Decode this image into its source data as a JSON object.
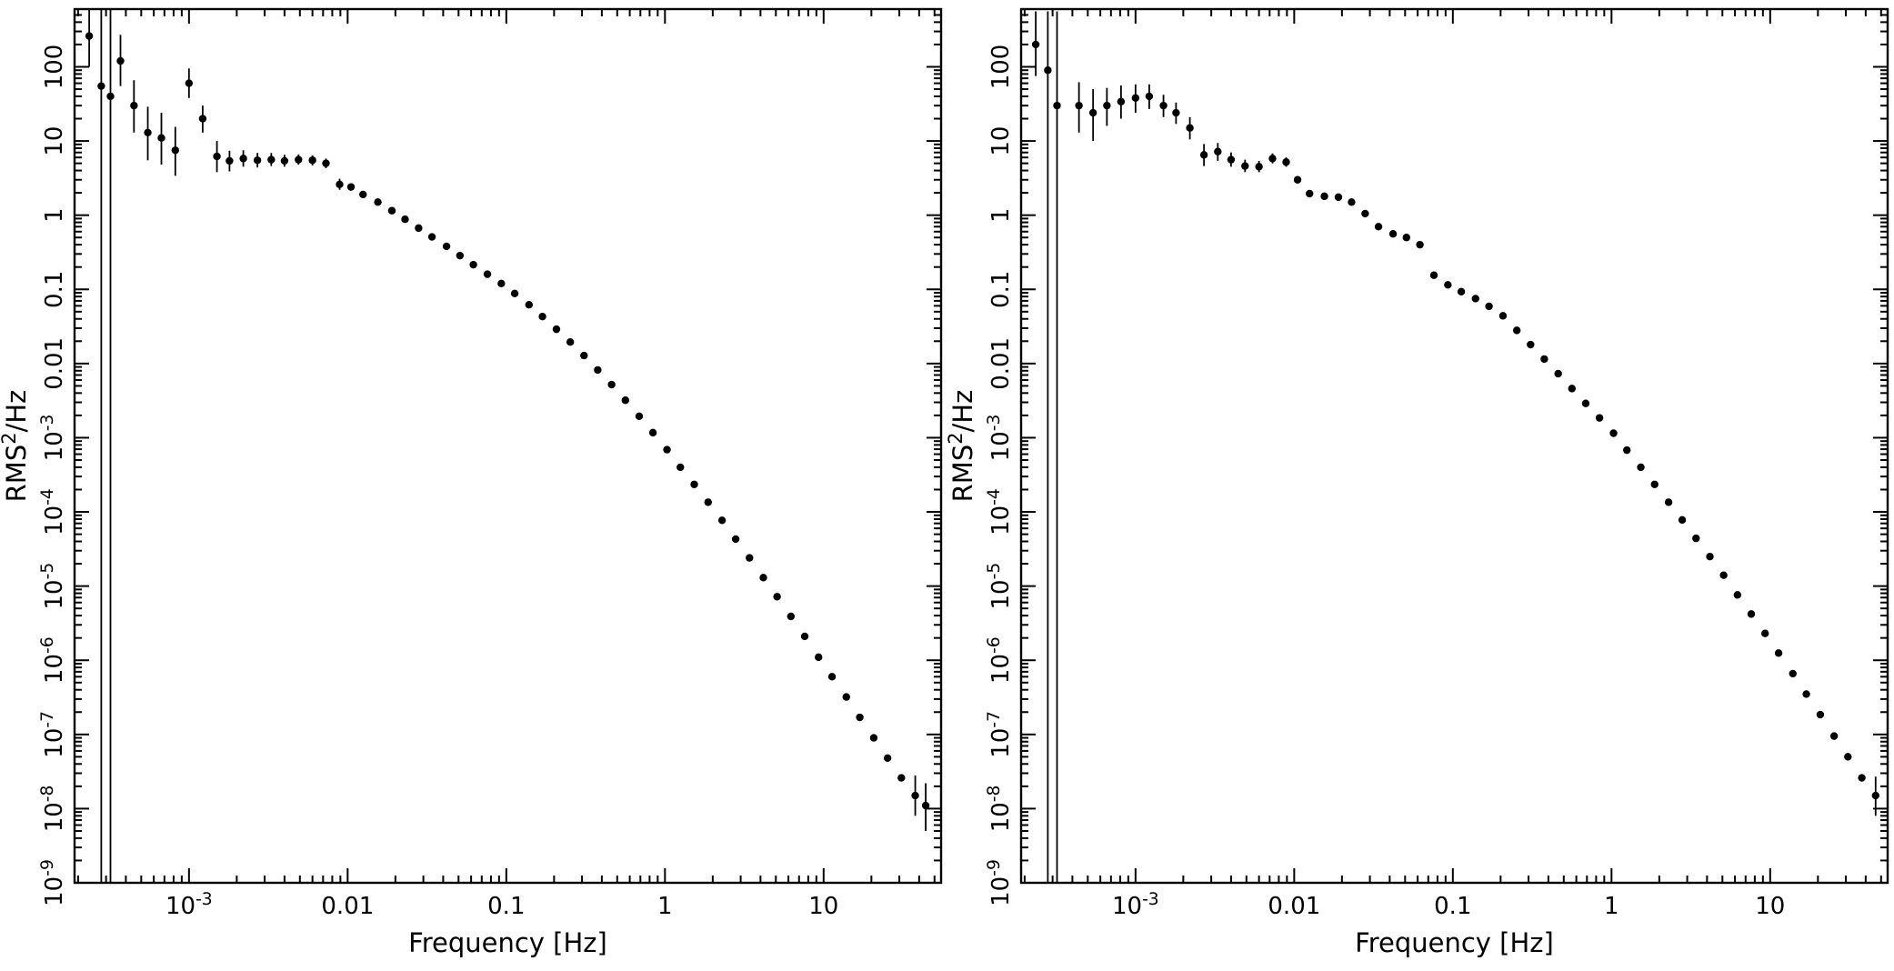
{
  "figure": {
    "background": "#ffffff",
    "foreground": "#000000"
  },
  "chart_data": [
    {
      "name": "power-spectrum-left",
      "type": "scatter",
      "title": "",
      "xlabel": "Frequency [Hz]",
      "ylabel": "RMS^2/Hz",
      "xscale": "log",
      "yscale": "log",
      "grid": false,
      "legend": false,
      "xlim": [
        0.00019,
        55
      ],
      "ylim": [
        1e-09,
        600
      ],
      "color": "#000000",
      "marker": {
        "shape": "circle",
        "radius": 4.2
      },
      "xticks": [
        {
          "v": 0.001,
          "label": "10^-3"
        },
        {
          "v": 0.01,
          "label": "0.01"
        },
        {
          "v": 0.1,
          "label": "0.1"
        },
        {
          "v": 1,
          "label": "1"
        },
        {
          "v": 10,
          "label": "10"
        }
      ],
      "yticks": [
        {
          "v": 100,
          "label": "100"
        },
        {
          "v": 10,
          "label": "10"
        },
        {
          "v": 1,
          "label": "1"
        },
        {
          "v": 0.1,
          "label": "0.1"
        },
        {
          "v": 0.01,
          "label": "0.01"
        },
        {
          "v": 0.001,
          "label": "10^-3"
        },
        {
          "v": 0.0001,
          "label": "10^-4"
        },
        {
          "v": 1e-05,
          "label": "10^-5"
        },
        {
          "v": 1e-06,
          "label": "10^-6"
        },
        {
          "v": 1e-07,
          "label": "10^-7"
        },
        {
          "v": 1e-08,
          "label": "10^-8"
        },
        {
          "v": 1e-09,
          "label": "10^-9"
        }
      ],
      "points": [
        [
          0.000235,
          260,
          100,
          640
        ],
        [
          0.00028,
          55,
          1e-09,
          640
        ],
        [
          0.00032,
          40,
          1e-09,
          640
        ],
        [
          0.00037,
          120,
          55,
          270
        ],
        [
          0.00045,
          30,
          13,
          66
        ],
        [
          0.00055,
          13,
          5.5,
          29
        ],
        [
          0.00067,
          11,
          4.8,
          24
        ],
        [
          0.00082,
          7.5,
          3.4,
          15.5
        ],
        [
          0.001,
          60,
          38,
          95
        ],
        [
          0.00122,
          20,
          13,
          30
        ],
        [
          0.0015,
          6.2,
          3.8,
          10
        ],
        [
          0.0018,
          5.4,
          3.9,
          7.4
        ],
        [
          0.0022,
          5.8,
          4.5,
          7.5
        ],
        [
          0.0027,
          5.5,
          4.4,
          6.9
        ],
        [
          0.0033,
          5.6,
          4.6,
          6.9
        ],
        [
          0.004,
          5.4,
          4.5,
          6.5
        ],
        [
          0.0049,
          5.6,
          4.8,
          6.6
        ],
        [
          0.006,
          5.5,
          4.7,
          6.4
        ],
        [
          0.0073,
          5.0,
          4.3,
          5.8
        ],
        [
          0.0089,
          2.6,
          2.2,
          3.1
        ],
        [
          0.0105,
          2.4
        ],
        [
          0.0125,
          1.9
        ],
        [
          0.0155,
          1.5
        ],
        [
          0.019,
          1.15
        ],
        [
          0.023,
          0.88
        ],
        [
          0.028,
          0.67
        ],
        [
          0.034,
          0.51
        ],
        [
          0.042,
          0.38
        ],
        [
          0.051,
          0.285
        ],
        [
          0.062,
          0.215
        ],
        [
          0.076,
          0.16
        ],
        [
          0.093,
          0.12
        ],
        [
          0.113,
          0.088
        ],
        [
          0.139,
          0.062
        ],
        [
          0.169,
          0.043
        ],
        [
          0.207,
          0.029
        ],
        [
          0.253,
          0.0195
        ],
        [
          0.309,
          0.0128
        ],
        [
          0.377,
          0.0082
        ],
        [
          0.461,
          0.0052
        ],
        [
          0.563,
          0.0032
        ],
        [
          0.688,
          0.00195
        ],
        [
          0.84,
          0.00117
        ],
        [
          1.03,
          0.00069
        ],
        [
          1.25,
          0.0004
        ],
        [
          1.53,
          0.000235
        ],
        [
          1.87,
          0.000135
        ],
        [
          2.29,
          7.7e-05
        ],
        [
          2.79,
          4.3e-05
        ],
        [
          3.41,
          2.4e-05
        ],
        [
          4.17,
          1.3e-05
        ],
        [
          5.09,
          7.2e-06
        ],
        [
          6.22,
          3.9e-06
        ],
        [
          7.6,
          2.1e-06
        ],
        [
          9.29,
          1.1e-06
        ],
        [
          11.3,
          6e-07
        ],
        [
          13.9,
          3.2e-07
        ],
        [
          16.9,
          1.7e-07
        ],
        [
          20.7,
          9e-08
        ],
        [
          25.3,
          4.8e-08
        ],
        [
          30.9,
          2.6e-08
        ],
        [
          37.8,
          1.5e-08,
          8e-09,
          2.8e-08
        ],
        [
          44.0,
          1.1e-08,
          5e-09,
          2.2e-08
        ]
      ]
    },
    {
      "name": "power-spectrum-right",
      "type": "scatter",
      "title": "",
      "xlabel": "Frequency [Hz]",
      "ylabel": "RMS^2/Hz",
      "xscale": "log",
      "yscale": "log",
      "grid": false,
      "legend": false,
      "xlim": [
        0.00019,
        55
      ],
      "ylim": [
        1e-09,
        600
      ],
      "color": "#000000",
      "marker": {
        "shape": "circle",
        "radius": 4.2
      },
      "xticks": [
        {
          "v": 0.001,
          "label": "10^-3"
        },
        {
          "v": 0.01,
          "label": "0.01"
        },
        {
          "v": 0.1,
          "label": "0.1"
        },
        {
          "v": 1,
          "label": "1"
        },
        {
          "v": 10,
          "label": "10"
        }
      ],
      "yticks": [
        {
          "v": 100,
          "label": "100"
        },
        {
          "v": 10,
          "label": "10"
        },
        {
          "v": 1,
          "label": "1"
        },
        {
          "v": 0.1,
          "label": "0.1"
        },
        {
          "v": 0.01,
          "label": "0.01"
        },
        {
          "v": 0.001,
          "label": "10^-3"
        },
        {
          "v": 0.0001,
          "label": "10^-4"
        },
        {
          "v": 1e-05,
          "label": "10^-5"
        },
        {
          "v": 1e-06,
          "label": "10^-6"
        },
        {
          "v": 1e-07,
          "label": "10^-7"
        },
        {
          "v": 1e-08,
          "label": "10^-8"
        },
        {
          "v": 1e-09,
          "label": "10^-9"
        }
      ],
      "points": [
        [
          0.000235,
          200,
          75,
          560
        ],
        [
          0.00028,
          90,
          1e-09,
          560
        ],
        [
          0.00032,
          30,
          1e-09,
          560
        ],
        [
          0.00044,
          30,
          13,
          62
        ],
        [
          0.00054,
          24,
          10,
          50
        ],
        [
          0.00066,
          30,
          16,
          52
        ],
        [
          0.00081,
          34,
          20,
          56
        ],
        [
          0.001,
          38,
          24,
          58
        ],
        [
          0.00122,
          40,
          27,
          58
        ],
        [
          0.0015,
          30,
          21,
          42
        ],
        [
          0.0018,
          24,
          17,
          33
        ],
        [
          0.0022,
          15,
          10.5,
          21
        ],
        [
          0.0027,
          6.5,
          4.6,
          9.1
        ],
        [
          0.0033,
          7.2,
          5.4,
          9.4
        ],
        [
          0.004,
          5.6,
          4.5,
          7.0
        ],
        [
          0.0049,
          4.6,
          3.8,
          5.6
        ],
        [
          0.006,
          4.5,
          3.8,
          5.4
        ],
        [
          0.0073,
          5.8,
          5.0,
          6.8
        ],
        [
          0.0089,
          5.2,
          4.5,
          6.0
        ],
        [
          0.0105,
          3.0
        ],
        [
          0.0125,
          1.95
        ],
        [
          0.0155,
          1.8
        ],
        [
          0.019,
          1.75
        ],
        [
          0.023,
          1.5
        ],
        [
          0.028,
          1.05
        ],
        [
          0.034,
          0.7
        ],
        [
          0.042,
          0.56
        ],
        [
          0.051,
          0.5
        ],
        [
          0.062,
          0.4
        ],
        [
          0.076,
          0.155
        ],
        [
          0.093,
          0.115
        ],
        [
          0.113,
          0.093
        ],
        [
          0.139,
          0.075
        ],
        [
          0.169,
          0.059
        ],
        [
          0.207,
          0.044
        ],
        [
          0.253,
          0.028
        ],
        [
          0.309,
          0.018
        ],
        [
          0.377,
          0.0115
        ],
        [
          0.461,
          0.0073
        ],
        [
          0.563,
          0.0046
        ],
        [
          0.688,
          0.0029
        ],
        [
          0.84,
          0.00185
        ],
        [
          1.03,
          0.00115
        ],
        [
          1.25,
          0.00068
        ],
        [
          1.53,
          0.0004
        ],
        [
          1.87,
          0.000235
        ],
        [
          2.29,
          0.000135
        ],
        [
          2.79,
          7.8e-05
        ],
        [
          3.41,
          4.4e-05
        ],
        [
          4.17,
          2.5e-05
        ],
        [
          5.09,
          1.4e-05
        ],
        [
          6.22,
          7.6e-06
        ],
        [
          7.6,
          4.2e-06
        ],
        [
          9.29,
          2.3e-06
        ],
        [
          11.3,
          1.25e-06
        ],
        [
          13.9,
          6.6e-07
        ],
        [
          16.9,
          3.5e-07
        ],
        [
          20.7,
          1.85e-07
        ],
        [
          25.3,
          9.5e-08
        ],
        [
          30.9,
          5e-08
        ],
        [
          37.8,
          2.6e-08
        ],
        [
          46.2,
          1.5e-08,
          8e-09,
          2.7e-08
        ]
      ]
    }
  ]
}
